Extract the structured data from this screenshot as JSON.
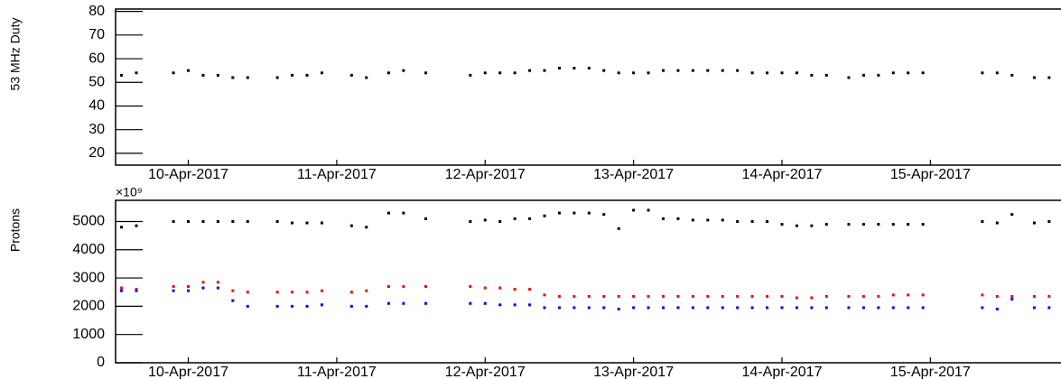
{
  "chart_data": [
    {
      "type": "scatter",
      "ylabel": "53 MHz Duty",
      "x": [
        9.55,
        9.65,
        9.9,
        10.0,
        10.1,
        10.2,
        10.3,
        10.4,
        10.6,
        10.7,
        10.8,
        10.9,
        11.1,
        11.2,
        11.35,
        11.45,
        11.6,
        11.9,
        12.0,
        12.1,
        12.2,
        12.3,
        12.4,
        12.5,
        12.6,
        12.7,
        12.8,
        12.9,
        13.0,
        13.1,
        13.2,
        13.3,
        13.4,
        13.5,
        13.6,
        13.7,
        13.8,
        13.9,
        14.0,
        14.1,
        14.2,
        14.3,
        14.45,
        14.55,
        14.65,
        14.75,
        14.85,
        14.95,
        15.35,
        15.45,
        15.55,
        15.7,
        15.8
      ],
      "series": [
        {
          "color": "#000000",
          "values": [
            53,
            54,
            54,
            55,
            53,
            53,
            52,
            52,
            52,
            53,
            53,
            54,
            53,
            52,
            54,
            55,
            54,
            53,
            54,
            54,
            54,
            55,
            55,
            56,
            56,
            56,
            55,
            54,
            54,
            54,
            55,
            55,
            55,
            55,
            55,
            55,
            54,
            54,
            54,
            54,
            53,
            53,
            52,
            53,
            53,
            54,
            54,
            54,
            54,
            54,
            53,
            52,
            52
          ]
        }
      ],
      "xlim": [
        9.51,
        15.88
      ],
      "xticks": [
        {
          "value": 10,
          "label": "10-Apr-2017"
        },
        {
          "value": 11,
          "label": "11-Apr-2017"
        },
        {
          "value": 12,
          "label": "12-Apr-2017"
        },
        {
          "value": 13,
          "label": "13-Apr-2017"
        },
        {
          "value": 14,
          "label": "14-Apr-2017"
        },
        {
          "value": 15,
          "label": "15-Apr-2017"
        }
      ],
      "ylim": [
        15,
        81
      ],
      "yticks": [
        20,
        30,
        40,
        50,
        60,
        70,
        80
      ]
    },
    {
      "type": "scatter",
      "ylabel": "Protons",
      "y_exponent": "×10⁹",
      "x": [
        9.55,
        9.65,
        9.9,
        10.0,
        10.1,
        10.2,
        10.3,
        10.4,
        10.6,
        10.7,
        10.8,
        10.9,
        11.1,
        11.2,
        11.35,
        11.45,
        11.6,
        11.9,
        12.0,
        12.1,
        12.2,
        12.3,
        12.4,
        12.5,
        12.6,
        12.7,
        12.8,
        12.9,
        13.0,
        13.1,
        13.2,
        13.3,
        13.4,
        13.5,
        13.6,
        13.7,
        13.8,
        13.9,
        14.0,
        14.1,
        14.2,
        14.3,
        14.45,
        14.55,
        14.65,
        14.75,
        14.85,
        14.95,
        15.35,
        15.45,
        15.55,
        15.7,
        15.8
      ],
      "series": [
        {
          "color": "#000000",
          "values": [
            4800,
            4850,
            5000,
            5000,
            5000,
            5000,
            5000,
            5000,
            5000,
            4950,
            4950,
            4950,
            4850,
            4800,
            5300,
            5300,
            5100,
            5000,
            5050,
            5000,
            5100,
            5100,
            5200,
            5300,
            5300,
            5300,
            5250,
            4750,
            5400,
            5400,
            5100,
            5100,
            5050,
            5050,
            5050,
            5000,
            5000,
            5000,
            4900,
            4850,
            4850,
            4900,
            4900,
            4900,
            4900,
            4900,
            4900,
            4900,
            5000,
            4950,
            5250,
            4950,
            5000
          ]
        },
        {
          "color": "#ff0000",
          "values": [
            2650,
            2600,
            2700,
            2700,
            2850,
            2850,
            2550,
            2500,
            2500,
            2500,
            2500,
            2550,
            2500,
            2550,
            2700,
            2700,
            2700,
            2700,
            2650,
            2650,
            2600,
            2600,
            2400,
            2350,
            2350,
            2350,
            2350,
            2350,
            2350,
            2350,
            2350,
            2350,
            2350,
            2350,
            2350,
            2350,
            2350,
            2350,
            2350,
            2300,
            2300,
            2350,
            2350,
            2350,
            2350,
            2400,
            2400,
            2400,
            2400,
            2350,
            2350,
            2350,
            2350
          ]
        },
        {
          "color": "#0000ff",
          "values": [
            2550,
            2550,
            2550,
            2550,
            2650,
            2650,
            2200,
            2000,
            2000,
            2000,
            2000,
            2050,
            2000,
            2000,
            2100,
            2100,
            2100,
            2100,
            2100,
            2050,
            2050,
            2050,
            1950,
            1950,
            1950,
            1950,
            1950,
            1900,
            1950,
            1950,
            1950,
            1950,
            1950,
            1950,
            1950,
            1950,
            1950,
            1950,
            1950,
            1950,
            1950,
            1950,
            1950,
            1950,
            1950,
            1950,
            1950,
            1950,
            1950,
            1900,
            2250,
            1950,
            1950
          ]
        }
      ],
      "xlim": [
        9.51,
        15.88
      ],
      "xticks": [
        {
          "value": 10,
          "label": "10-Apr-2017"
        },
        {
          "value": 11,
          "label": "11-Apr-2017"
        },
        {
          "value": 12,
          "label": "12-Apr-2017"
        },
        {
          "value": 13,
          "label": "13-Apr-2017"
        },
        {
          "value": 14,
          "label": "14-Apr-2017"
        },
        {
          "value": 15,
          "label": "15-Apr-2017"
        }
      ],
      "ylim": [
        0,
        5750
      ],
      "yticks": [
        0,
        1000,
        2000,
        3000,
        4000,
        5000
      ]
    }
  ]
}
